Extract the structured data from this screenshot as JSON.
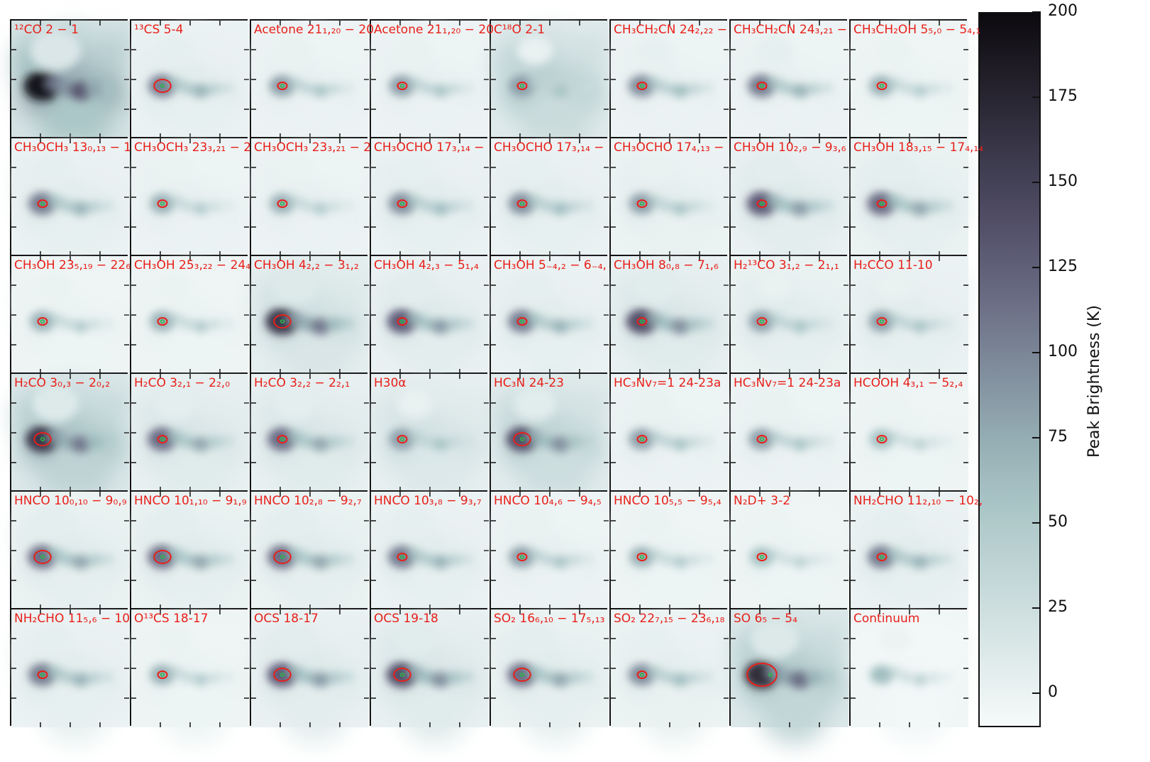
{
  "chart_data": {
    "type": "heatmap",
    "description_panels": "48 peak-brightness maps arranged in a 6x8 grid",
    "panels": [
      {
        "label": "¹²CO 2 − 1",
        "intensity": 0.95,
        "diffuse": 1.0,
        "contour": "none"
      },
      {
        "label": "¹³CS 5-4",
        "intensity": 0.55,
        "diffuse": 0.2,
        "contour": "big"
      },
      {
        "label": "Acetone 21₁,₂₀ − 20",
        "intensity": 0.45,
        "diffuse": 0.15,
        "contour": "small"
      },
      {
        "label": "Acetone 21₁,₂₀ − 20",
        "intensity": 0.45,
        "diffuse": 0.15,
        "contour": "small"
      },
      {
        "label": "C¹⁸O 2-1",
        "intensity": 0.45,
        "diffuse": 0.6,
        "contour": "small"
      },
      {
        "label": "CH₃CH₂CN 24₂,₂₂ −",
        "intensity": 0.5,
        "diffuse": 0.15,
        "contour": "small"
      },
      {
        "label": "CH₃CH₂CN 24₃,₂₁ −",
        "intensity": 0.55,
        "diffuse": 0.15,
        "contour": "small"
      },
      {
        "label": "CH₃CH₂OH 5₅,₀ − 5₄,₁",
        "intensity": 0.4,
        "diffuse": 0.12,
        "contour": "small"
      },
      {
        "label": "CH₃OCH₃ 13₀,₁₃ − 1",
        "intensity": 0.55,
        "diffuse": 0.2,
        "contour": "small"
      },
      {
        "label": "CH₃OCH₃ 23₃,₂₁ − 2",
        "intensity": 0.4,
        "diffuse": 0.15,
        "contour": "small"
      },
      {
        "label": "CH₃OCH₃ 23₃,₂₁ − 2",
        "intensity": 0.4,
        "diffuse": 0.15,
        "contour": "small"
      },
      {
        "label": "CH₃OCHO 17₃,₁₄ −",
        "intensity": 0.5,
        "diffuse": 0.2,
        "contour": "small"
      },
      {
        "label": "CH₃OCHO 17₃,₁₄ −",
        "intensity": 0.5,
        "diffuse": 0.2,
        "contour": "small"
      },
      {
        "label": "CH₃OCHO 17₄,₁₃ −",
        "intensity": 0.45,
        "diffuse": 0.18,
        "contour": "small"
      },
      {
        "label": "CH₃OH 10₂,₉ − 9₃,₆",
        "intensity": 0.65,
        "diffuse": 0.25,
        "contour": "small"
      },
      {
        "label": "CH₃OH 18₃,₁₅ − 17₄,₁₄",
        "intensity": 0.6,
        "diffuse": 0.22,
        "contour": "small"
      },
      {
        "label": "CH₃OH 23₅,₁₉ − 22₆",
        "intensity": 0.4,
        "diffuse": 0.12,
        "contour": "small"
      },
      {
        "label": "CH₃OH 25₃,₂₂ − 24₄",
        "intensity": 0.4,
        "diffuse": 0.12,
        "contour": "small"
      },
      {
        "label": "CH₃OH 4₂,₂ − 3₁,₂",
        "intensity": 0.8,
        "diffuse": 0.4,
        "contour": "big"
      },
      {
        "label": "CH₃OH 4₂,₃ − 5₁,₄",
        "intensity": 0.65,
        "diffuse": 0.25,
        "contour": "small"
      },
      {
        "label": "CH₃OH 5₋₄,₂ − 6₋₄,",
        "intensity": 0.55,
        "diffuse": 0.2,
        "contour": "small"
      },
      {
        "label": "CH₃OH 8₀,₈ − 7₁,₆",
        "intensity": 0.7,
        "diffuse": 0.3,
        "contour": "small"
      },
      {
        "label": "H₂¹³CO 3₁,₂ − 2₁,₁",
        "intensity": 0.45,
        "diffuse": 0.22,
        "contour": "small"
      },
      {
        "label": "H₂CCO 11-10",
        "intensity": 0.45,
        "diffuse": 0.2,
        "contour": "small"
      },
      {
        "label": "H₂CO 3₀,₃ − 2₀,₂",
        "intensity": 0.8,
        "diffuse": 0.75,
        "contour": "big"
      },
      {
        "label": "H₂CO 3₂,₁ − 2₂,₀",
        "intensity": 0.6,
        "diffuse": 0.3,
        "contour": "small"
      },
      {
        "label": "H₂CO 3₂,₂ − 2₂,₁",
        "intensity": 0.6,
        "diffuse": 0.3,
        "contour": "small"
      },
      {
        "label": "H30α",
        "intensity": 0.45,
        "diffuse": 0.35,
        "contour": "small"
      },
      {
        "label": "HC₃N 24-23",
        "intensity": 0.7,
        "diffuse": 0.55,
        "contour": "big"
      },
      {
        "label": "HC₃Nv₇=1 24-23a",
        "intensity": 0.45,
        "diffuse": 0.15,
        "contour": "small"
      },
      {
        "label": "HC₃Nv₇=1 24-23a",
        "intensity": 0.45,
        "diffuse": 0.15,
        "contour": "small"
      },
      {
        "label": "HCOOH 4₃,₁ − 5₂,₄",
        "intensity": 0.35,
        "diffuse": 0.12,
        "contour": "small"
      },
      {
        "label": "HNCO 10₀,₁₀ − 9₀,₉",
        "intensity": 0.6,
        "diffuse": 0.22,
        "contour": "big"
      },
      {
        "label": "HNCO 10₁,₁₀ − 9₁,₉",
        "intensity": 0.6,
        "diffuse": 0.22,
        "contour": "big"
      },
      {
        "label": "HNCO 10₂,₈ − 9₂,₇",
        "intensity": 0.6,
        "diffuse": 0.22,
        "contour": "big"
      },
      {
        "label": "HNCO 10₃,₈ − 9₃,₇",
        "intensity": 0.55,
        "diffuse": 0.2,
        "contour": "small"
      },
      {
        "label": "HNCO 10₄,₆ − 9₄,₅",
        "intensity": 0.45,
        "diffuse": 0.15,
        "contour": "small"
      },
      {
        "label": "HNCO 10₅,₅ − 9₅,₄",
        "intensity": 0.4,
        "diffuse": 0.12,
        "contour": "small"
      },
      {
        "label": "N₂D+ 3-2",
        "intensity": 0.35,
        "diffuse": 0.12,
        "contour": "small"
      },
      {
        "label": "NH₂CHO 11₂,₁₀ − 10₂,",
        "intensity": 0.55,
        "diffuse": 0.2,
        "contour": "small"
      },
      {
        "label": "NH₂CHO 11₅,₆ − 10",
        "intensity": 0.55,
        "diffuse": 0.2,
        "contour": "small"
      },
      {
        "label": "O¹³CS 18-17",
        "intensity": 0.4,
        "diffuse": 0.12,
        "contour": "small"
      },
      {
        "label": "OCS 18-17",
        "intensity": 0.65,
        "diffuse": 0.25,
        "contour": "big"
      },
      {
        "label": "OCS 19-18",
        "intensity": 0.7,
        "diffuse": 0.3,
        "contour": "big"
      },
      {
        "label": "SO₂ 16₆,₁₀ − 17₅,₁₃",
        "intensity": 0.6,
        "diffuse": 0.22,
        "contour": "big"
      },
      {
        "label": "SO₂ 22₇,₁₅ − 23₆,₁₈",
        "intensity": 0.5,
        "diffuse": 0.18,
        "contour": "small"
      },
      {
        "label": "SO 6₅ − 5₄",
        "intensity": 0.85,
        "diffuse": 0.7,
        "contour": "huge"
      },
      {
        "label": "Continuum",
        "intensity": 0.35,
        "diffuse": 0.05,
        "contour": "none"
      }
    ],
    "colorbar": {
      "label": "Peak Brightness (K)",
      "ticks": [
        "0",
        "25",
        "50",
        "75",
        "100",
        "125",
        "150",
        "175",
        "200"
      ],
      "tick_values": [
        0,
        25,
        50,
        75,
        100,
        125,
        150,
        175,
        200
      ],
      "range": [
        -10,
        200
      ],
      "colormap": "bone_r"
    },
    "colors": {
      "label": "#e8201a",
      "contour_outer": "#e8201a",
      "contour_inner": "#2db84a"
    }
  }
}
